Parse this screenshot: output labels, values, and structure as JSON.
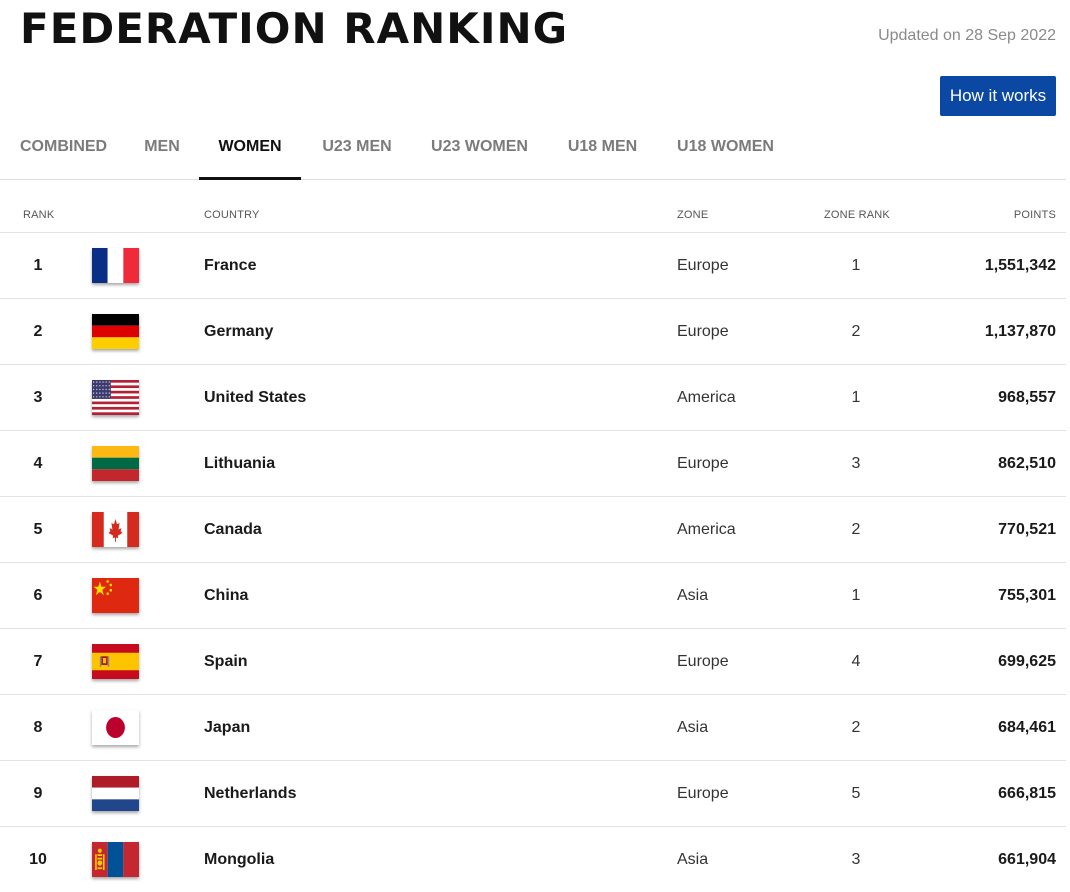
{
  "header": {
    "title": "FEDERATION RANKING",
    "updated": "Updated on 28 Sep 2022",
    "how_it_works_label": "How it works"
  },
  "tabs": [
    {
      "label": "COMBINED",
      "active": false
    },
    {
      "label": "MEN",
      "active": false
    },
    {
      "label": "WOMEN",
      "active": true
    },
    {
      "label": "U23 MEN",
      "active": false
    },
    {
      "label": "U23 WOMEN",
      "active": false
    },
    {
      "label": "U18 MEN",
      "active": false
    },
    {
      "label": "U18 WOMEN",
      "active": false
    }
  ],
  "table": {
    "columns": {
      "rank": "RANK",
      "country": "COUNTRY",
      "zone": "ZONE",
      "zone_rank": "ZONE RANK",
      "points": "POINTS"
    },
    "rows": [
      {
        "rank": "1",
        "flag": "france-flag-icon",
        "country": "France",
        "zone": "Europe",
        "zone_rank": "1",
        "points": "1,551,342"
      },
      {
        "rank": "2",
        "flag": "germany-flag-icon",
        "country": "Germany",
        "zone": "Europe",
        "zone_rank": "2",
        "points": "1,137,870"
      },
      {
        "rank": "3",
        "flag": "usa-flag-icon",
        "country": "United States",
        "zone": "America",
        "zone_rank": "1",
        "points": "968,557"
      },
      {
        "rank": "4",
        "flag": "lithuania-flag-icon",
        "country": "Lithuania",
        "zone": "Europe",
        "zone_rank": "3",
        "points": "862,510"
      },
      {
        "rank": "5",
        "flag": "canada-flag-icon",
        "country": "Canada",
        "zone": "America",
        "zone_rank": "2",
        "points": "770,521"
      },
      {
        "rank": "6",
        "flag": "china-flag-icon",
        "country": "China",
        "zone": "Asia",
        "zone_rank": "1",
        "points": "755,301"
      },
      {
        "rank": "7",
        "flag": "spain-flag-icon",
        "country": "Spain",
        "zone": "Europe",
        "zone_rank": "4",
        "points": "699,625"
      },
      {
        "rank": "8",
        "flag": "japan-flag-icon",
        "country": "Japan",
        "zone": "Asia",
        "zone_rank": "2",
        "points": "684,461"
      },
      {
        "rank": "9",
        "flag": "netherlands-flag-icon",
        "country": "Netherlands",
        "zone": "Europe",
        "zone_rank": "5",
        "points": "666,815"
      },
      {
        "rank": "10",
        "flag": "mongolia-flag-icon",
        "country": "Mongolia",
        "zone": "Asia",
        "zone_rank": "3",
        "points": "661,904"
      }
    ]
  },
  "colors": {
    "accent_button": "#0b48a3",
    "active_tab": "#111111",
    "inactive_tab": "#7b7b7b"
  }
}
